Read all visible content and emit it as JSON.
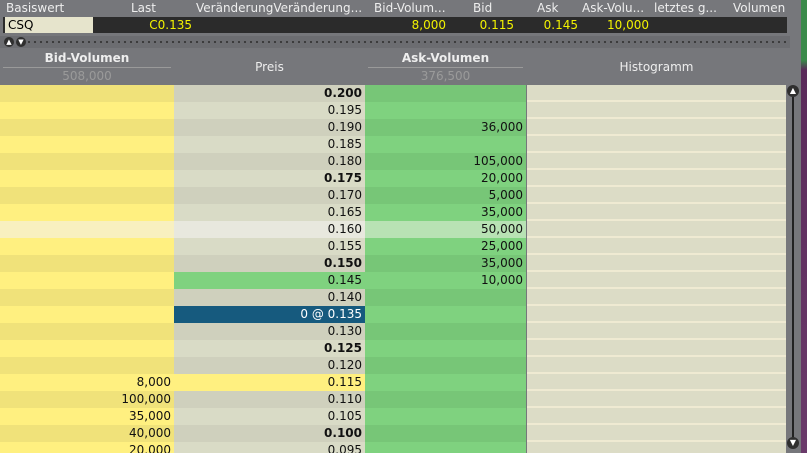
{
  "quote_header": [
    "Basiswert",
    "Last",
    "VeränderungVeränderung...",
    "Bid-Volum...",
    "Bid",
    "Ask",
    "Ask-Volu...",
    "letztes g...",
    "Volumen"
  ],
  "quote": {
    "symbol": "CSQ",
    "last": "C0.135",
    "bid_volume": "8,000",
    "bid": "0.115",
    "ask": "0.145",
    "ask_volume": "10,000"
  },
  "columns": {
    "bid_volume": "Bid-Volumen",
    "bid_total": "508,000",
    "price": "Preis",
    "ask_volume": "Ask-Volumen",
    "ask_total": "376,500",
    "histogram": "Histogramm"
  },
  "colors": {
    "bid": "#fff080",
    "price": "#d9dbc6",
    "ask": "#7fd27f",
    "last_trade": "#165a7e",
    "histogram": "#dcdcc6"
  },
  "ladder": [
    {
      "price": "0.200",
      "bold": true,
      "bid": "",
      "ask": ""
    },
    {
      "price": "0.195",
      "bid": "",
      "ask": ""
    },
    {
      "price": "0.190",
      "bid": "",
      "ask": "36,000"
    },
    {
      "price": "0.185",
      "bid": "",
      "ask": ""
    },
    {
      "price": "0.180",
      "bid": "",
      "ask": "105,000"
    },
    {
      "price": "0.175",
      "bold": true,
      "bid": "",
      "ask": "20,000"
    },
    {
      "price": "0.170",
      "bid": "",
      "ask": "5,000"
    },
    {
      "price": "0.165",
      "bid": "",
      "ask": "35,000"
    },
    {
      "price": "0.160",
      "bid": "",
      "ask": "50,000",
      "highlight": true
    },
    {
      "price": "0.155",
      "bid": "",
      "ask": "25,000"
    },
    {
      "price": "0.150",
      "bold": true,
      "bid": "",
      "ask": "35,000"
    },
    {
      "price": "0.145",
      "bid": "",
      "ask": "10,000",
      "best_ask": true
    },
    {
      "price": "0.140",
      "bid": "",
      "ask": ""
    },
    {
      "price": "0 @ 0.135",
      "bid": "",
      "ask": "",
      "last": true
    },
    {
      "price": "0.130",
      "bid": "",
      "ask": ""
    },
    {
      "price": "0.125",
      "bold": true,
      "bid": "",
      "ask": ""
    },
    {
      "price": "0.120",
      "bid": "",
      "ask": ""
    },
    {
      "price": "0.115",
      "bid": "8,000",
      "ask": "",
      "best_bid": true
    },
    {
      "price": "0.110",
      "bid": "100,000",
      "ask": ""
    },
    {
      "price": "0.105",
      "bid": "35,000",
      "ask": ""
    },
    {
      "price": "0.100",
      "bold": true,
      "bid": "40,000",
      "ask": ""
    },
    {
      "price": "0.095",
      "bid": "20,000",
      "ask": ""
    }
  ]
}
